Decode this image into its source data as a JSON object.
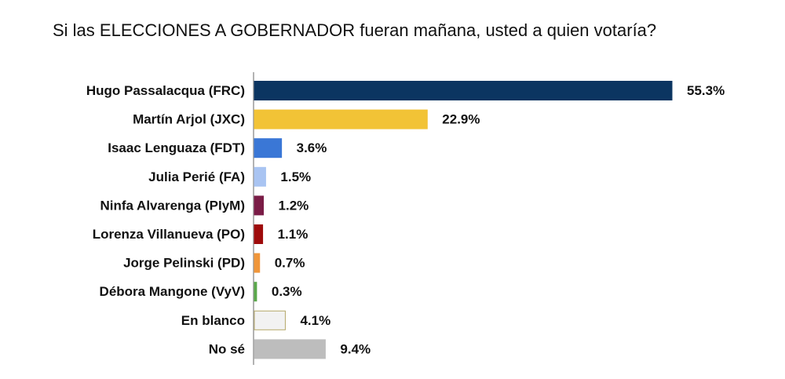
{
  "chart_data": {
    "type": "bar",
    "orientation": "horizontal",
    "title": "Si las ELECCIONES A GOBERNADOR fueran mañana, usted a quien votaría?",
    "categories": [
      "Hugo Passalacqua (FRC)",
      "Martín Arjol (JXC)",
      "Isaac Lenguaza (FDT)",
      "Julia Perié (FA)",
      "Ninfa Alvarenga (PIyM)",
      "Lorenza Villanueva (PO)",
      "Jorge Pelinski (PD)",
      "Débora Mangone (VyV)",
      "En blanco",
      "No sé"
    ],
    "values": [
      55.3,
      22.9,
      3.6,
      1.5,
      1.2,
      1.1,
      0.7,
      0.3,
      4.1,
      9.4
    ],
    "value_labels": [
      "55.3%",
      "22.9%",
      "3.6%",
      "1.5%",
      "1.2%",
      "1.1%",
      "0.7%",
      "0.3%",
      "4.1%",
      "9.4%"
    ],
    "colors": [
      "#0b3561",
      "#f2c336",
      "#3a77d6",
      "#a9c4f2",
      "#7a1c46",
      "#9e0b0b",
      "#f0963a",
      "#5aa84a",
      "#f2f2f2",
      "#bdbdbd"
    ],
    "border_colors": [
      "#0b3561",
      "#f2c336",
      "#3a77d6",
      "#a9c4f2",
      "#7a1c46",
      "#9e0b0b",
      "#f0963a",
      "#5aa84a",
      "#b5a86a",
      "#bdbdbd"
    ],
    "xlim": [
      0,
      55.3
    ],
    "grid": false,
    "xlabel": "",
    "ylabel": ""
  }
}
